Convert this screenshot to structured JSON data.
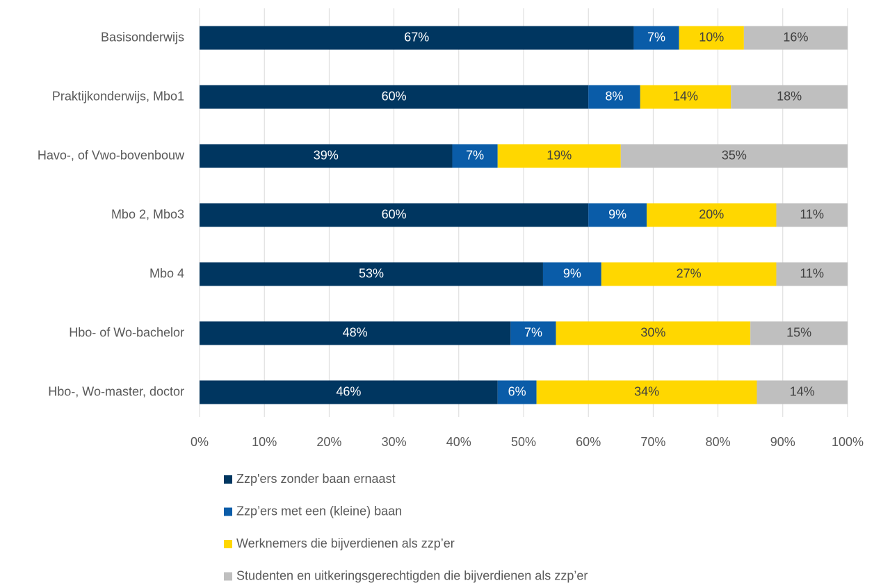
{
  "chart_data": {
    "type": "stacked_bar_horizontal",
    "categories": [
      "Basisonderwijs",
      "Praktijkonderwijs, Mbo1",
      "Havo-, of Vwo-bovenbouw",
      "Mbo 2, Mbo3",
      "Mbo 4",
      "Hbo- of Wo-bachelor",
      "Hbo-, Wo-master, doctor"
    ],
    "series": [
      {
        "name": "Zzp'ers zonder baan ernaast",
        "color": "#003660",
        "values": [
          67,
          60,
          39,
          60,
          53,
          48,
          46
        ],
        "value_labels": [
          "67%",
          "60%",
          "39%",
          "60%",
          "53%",
          "48%",
          "46%"
        ]
      },
      {
        "name": "Zzp’ers met een (kleine) baan",
        "color": "#0a5ca8",
        "values": [
          7,
          8,
          7,
          9,
          9,
          7,
          6
        ],
        "value_labels": [
          "7%",
          "8%",
          "7%",
          "9%",
          "9%",
          "7%",
          "6%"
        ]
      },
      {
        "name": "Werknemers die bijverdienen als zzp’er",
        "color": "#ffd700",
        "values": [
          10,
          14,
          19,
          20,
          27,
          30,
          34
        ],
        "value_labels": [
          "10%",
          "14%",
          "19%",
          "20%",
          "27%",
          "30%",
          "34%"
        ]
      },
      {
        "name": "Studenten en uitkeringsgerechtigden die bijverdienen als zzp’er",
        "color": "#bfbfbf",
        "values": [
          16,
          18,
          35,
          11,
          11,
          15,
          14
        ],
        "value_labels": [
          "16%",
          "18%",
          "35%",
          "11%",
          "11%",
          "15%",
          "14%"
        ]
      }
    ],
    "xlim": [
      0,
      100
    ],
    "xticks": [
      {
        "value": 0,
        "label": "0%"
      },
      {
        "value": 10,
        "label": "10%"
      },
      {
        "value": 20,
        "label": "20%"
      },
      {
        "value": 30,
        "label": "30%"
      },
      {
        "value": 40,
        "label": "40%"
      },
      {
        "value": 50,
        "label": "50%"
      },
      {
        "value": 60,
        "label": "60%"
      },
      {
        "value": 70,
        "label": "70%"
      },
      {
        "value": 80,
        "label": "80%"
      },
      {
        "value": 90,
        "label": "90%"
      },
      {
        "value": 100,
        "label": "100%"
      }
    ],
    "grid": true,
    "legend": "bottom"
  }
}
